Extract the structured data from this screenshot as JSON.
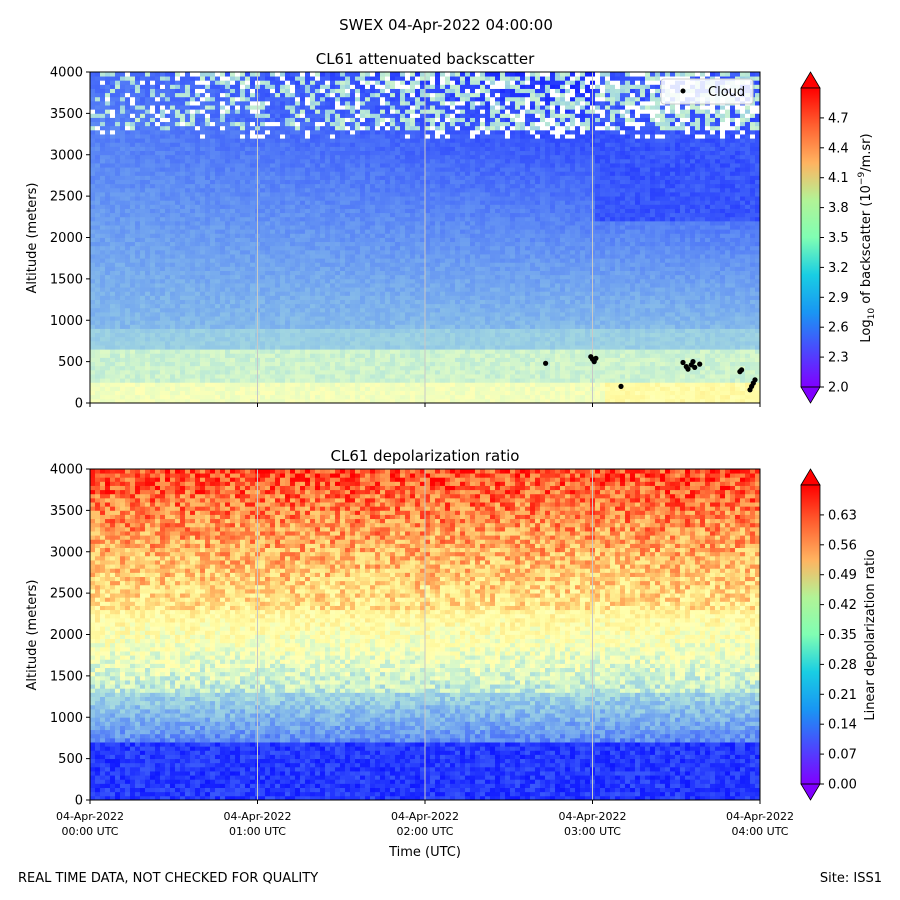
{
  "figure": {
    "suptitle": "SWEX 04-Apr-2022 04:00:00",
    "footer_left": "REAL TIME DATA, NOT CHECKED FOR QUALITY",
    "footer_right": "Site: ISS1",
    "xlabel": "Time (UTC)",
    "x_ticks": [
      {
        "date": "04-Apr-2022",
        "time": "00:00 UTC",
        "hours": 0
      },
      {
        "date": "04-Apr-2022",
        "time": "01:00 UTC",
        "hours": 1
      },
      {
        "date": "04-Apr-2022",
        "time": "02:00 UTC",
        "hours": 2
      },
      {
        "date": "04-Apr-2022",
        "time": "03:00 UTC",
        "hours": 3
      },
      {
        "date": "04-Apr-2022",
        "time": "04:00 UTC",
        "hours": 4
      }
    ]
  },
  "chart_data": [
    {
      "type": "heatmap",
      "title": "CL61 attenuated backscatter",
      "ylabel": "Altitude (meters)",
      "xlim_hours_utc": [
        0,
        4
      ],
      "ylim": [
        0,
        4000
      ],
      "y_ticks": [
        "0",
        "500",
        "1000",
        "1500",
        "2000",
        "2500",
        "3000",
        "3500",
        "4000"
      ],
      "colorbar": {
        "label_prefix": "Log",
        "label_sub": "10",
        "label_mid": " of backscatter (10",
        "label_sup": "−9",
        "label_suffix": "/m.sr)",
        "range": [
          2.0,
          5.0
        ],
        "ticks": [
          "2.0",
          "2.3",
          "2.6",
          "2.9",
          "3.2",
          "3.5",
          "3.8",
          "4.1",
          "4.4",
          "4.7"
        ],
        "colormap": "rainbow"
      },
      "legend": {
        "label": "Cloud",
        "marker": "black dot",
        "placement": "top-right"
      },
      "cloud_points": [
        {
          "t": 2.72,
          "alt": 480
        },
        {
          "t": 2.99,
          "alt": 560
        },
        {
          "t": 3.0,
          "alt": 530
        },
        {
          "t": 3.01,
          "alt": 500
        },
        {
          "t": 3.02,
          "alt": 540
        },
        {
          "t": 3.17,
          "alt": 200
        },
        {
          "t": 3.54,
          "alt": 490
        },
        {
          "t": 3.56,
          "alt": 440
        },
        {
          "t": 3.57,
          "alt": 410
        },
        {
          "t": 3.59,
          "alt": 460
        },
        {
          "t": 3.6,
          "alt": 500
        },
        {
          "t": 3.61,
          "alt": 430
        },
        {
          "t": 3.64,
          "alt": 470
        },
        {
          "t": 3.88,
          "alt": 380
        },
        {
          "t": 3.89,
          "alt": 400
        },
        {
          "t": 3.94,
          "alt": 160
        },
        {
          "t": 3.95,
          "alt": 200
        },
        {
          "t": 3.96,
          "alt": 240
        },
        {
          "t": 3.97,
          "alt": 280
        }
      ]
    },
    {
      "type": "heatmap",
      "title": "CL61 depolarization ratio",
      "ylabel": "Altitude (meters)",
      "xlim_hours_utc": [
        0,
        4
      ],
      "ylim": [
        0,
        4000
      ],
      "y_ticks": [
        "0",
        "500",
        "1000",
        "1500",
        "2000",
        "2500",
        "3000",
        "3500",
        "4000"
      ],
      "colorbar": {
        "label": "Linear depolarization ratio",
        "range": [
          0.0,
          0.7
        ],
        "ticks": [
          "0.00",
          "0.07",
          "0.14",
          "0.21",
          "0.28",
          "0.35",
          "0.42",
          "0.49",
          "0.56",
          "0.63"
        ],
        "colormap": "rainbow"
      }
    }
  ]
}
